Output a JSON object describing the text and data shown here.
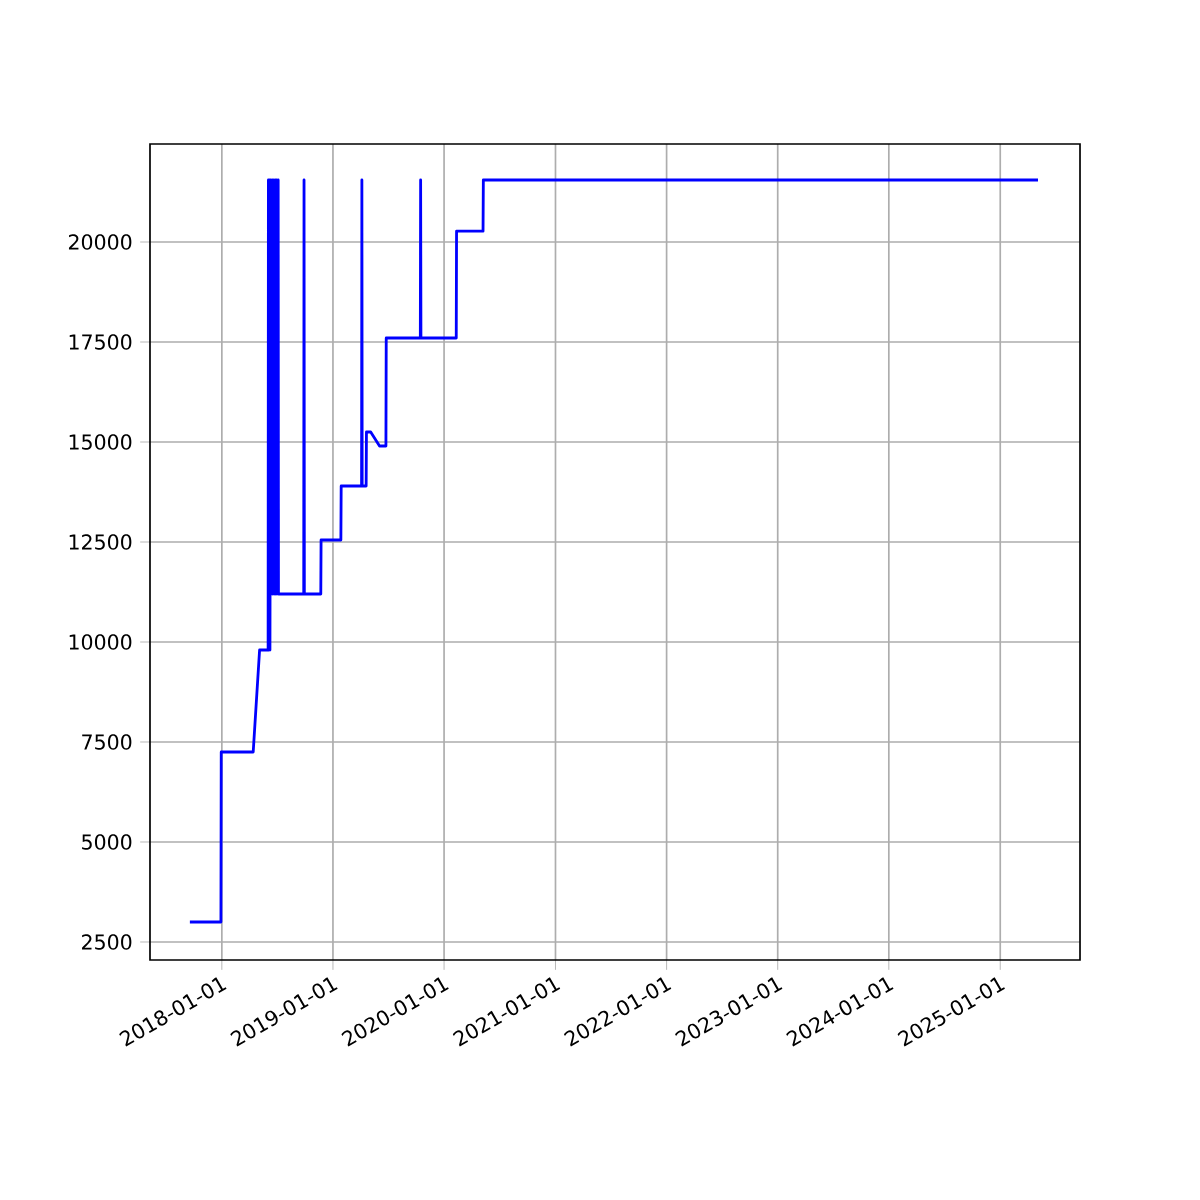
{
  "chart_data": {
    "type": "line",
    "x": [
      "2017-09-18",
      "2017-12-29",
      "2017-12-30",
      "2018-04-14",
      "2018-05-05",
      "2018-06-02",
      "2018-06-03",
      "2018-06-04",
      "2018-06-07",
      "2018-06-08",
      "2018-06-11",
      "2018-06-12",
      "2018-06-16",
      "2018-06-17",
      "2018-06-21",
      "2018-06-22",
      "2018-06-26",
      "2018-06-27",
      "2018-06-30",
      "2018-07-01",
      "2018-07-05",
      "2018-07-06",
      "2018-09-27",
      "2018-09-28",
      "2018-09-29",
      "2018-11-22",
      "2018-11-23",
      "2019-01-27",
      "2019-01-28",
      "2019-04-05",
      "2019-04-06",
      "2019-04-07",
      "2019-04-20",
      "2019-04-21",
      "2019-05-05",
      "2019-06-03",
      "2019-06-24",
      "2019-06-25",
      "2019-10-15",
      "2019-10-16",
      "2019-10-17",
      "2020-02-10",
      "2020-02-11",
      "2020-05-08",
      "2020-05-09",
      "2025-05-05"
    ],
    "series": [
      {
        "color": "#0000ff",
        "values": [
          3000,
          3000,
          7250,
          7250,
          9800,
          9800,
          21550,
          9800,
          21550,
          9800,
          21550,
          11200,
          21550,
          11200,
          21550,
          11200,
          21550,
          11200,
          21550,
          11200,
          21550,
          11200,
          11200,
          21550,
          11200,
          11200,
          12550,
          12550,
          13900,
          13900,
          21550,
          13900,
          13900,
          15250,
          15250,
          14900,
          14900,
          17600,
          17600,
          21550,
          17600,
          17600,
          20270,
          20270,
          21550,
          21550
        ]
      }
    ],
    "xlim": [
      "2017-05-10",
      "2025-09-20"
    ],
    "ylim": [
      2050,
      22450
    ],
    "xticks": [
      "2018-01-01",
      "2019-01-01",
      "2020-01-01",
      "2021-01-01",
      "2022-01-01",
      "2023-01-01",
      "2024-01-01",
      "2025-01-01"
    ],
    "yticks": [
      2500,
      5000,
      7500,
      10000,
      12500,
      15000,
      17500,
      20000
    ],
    "grid": true
  }
}
